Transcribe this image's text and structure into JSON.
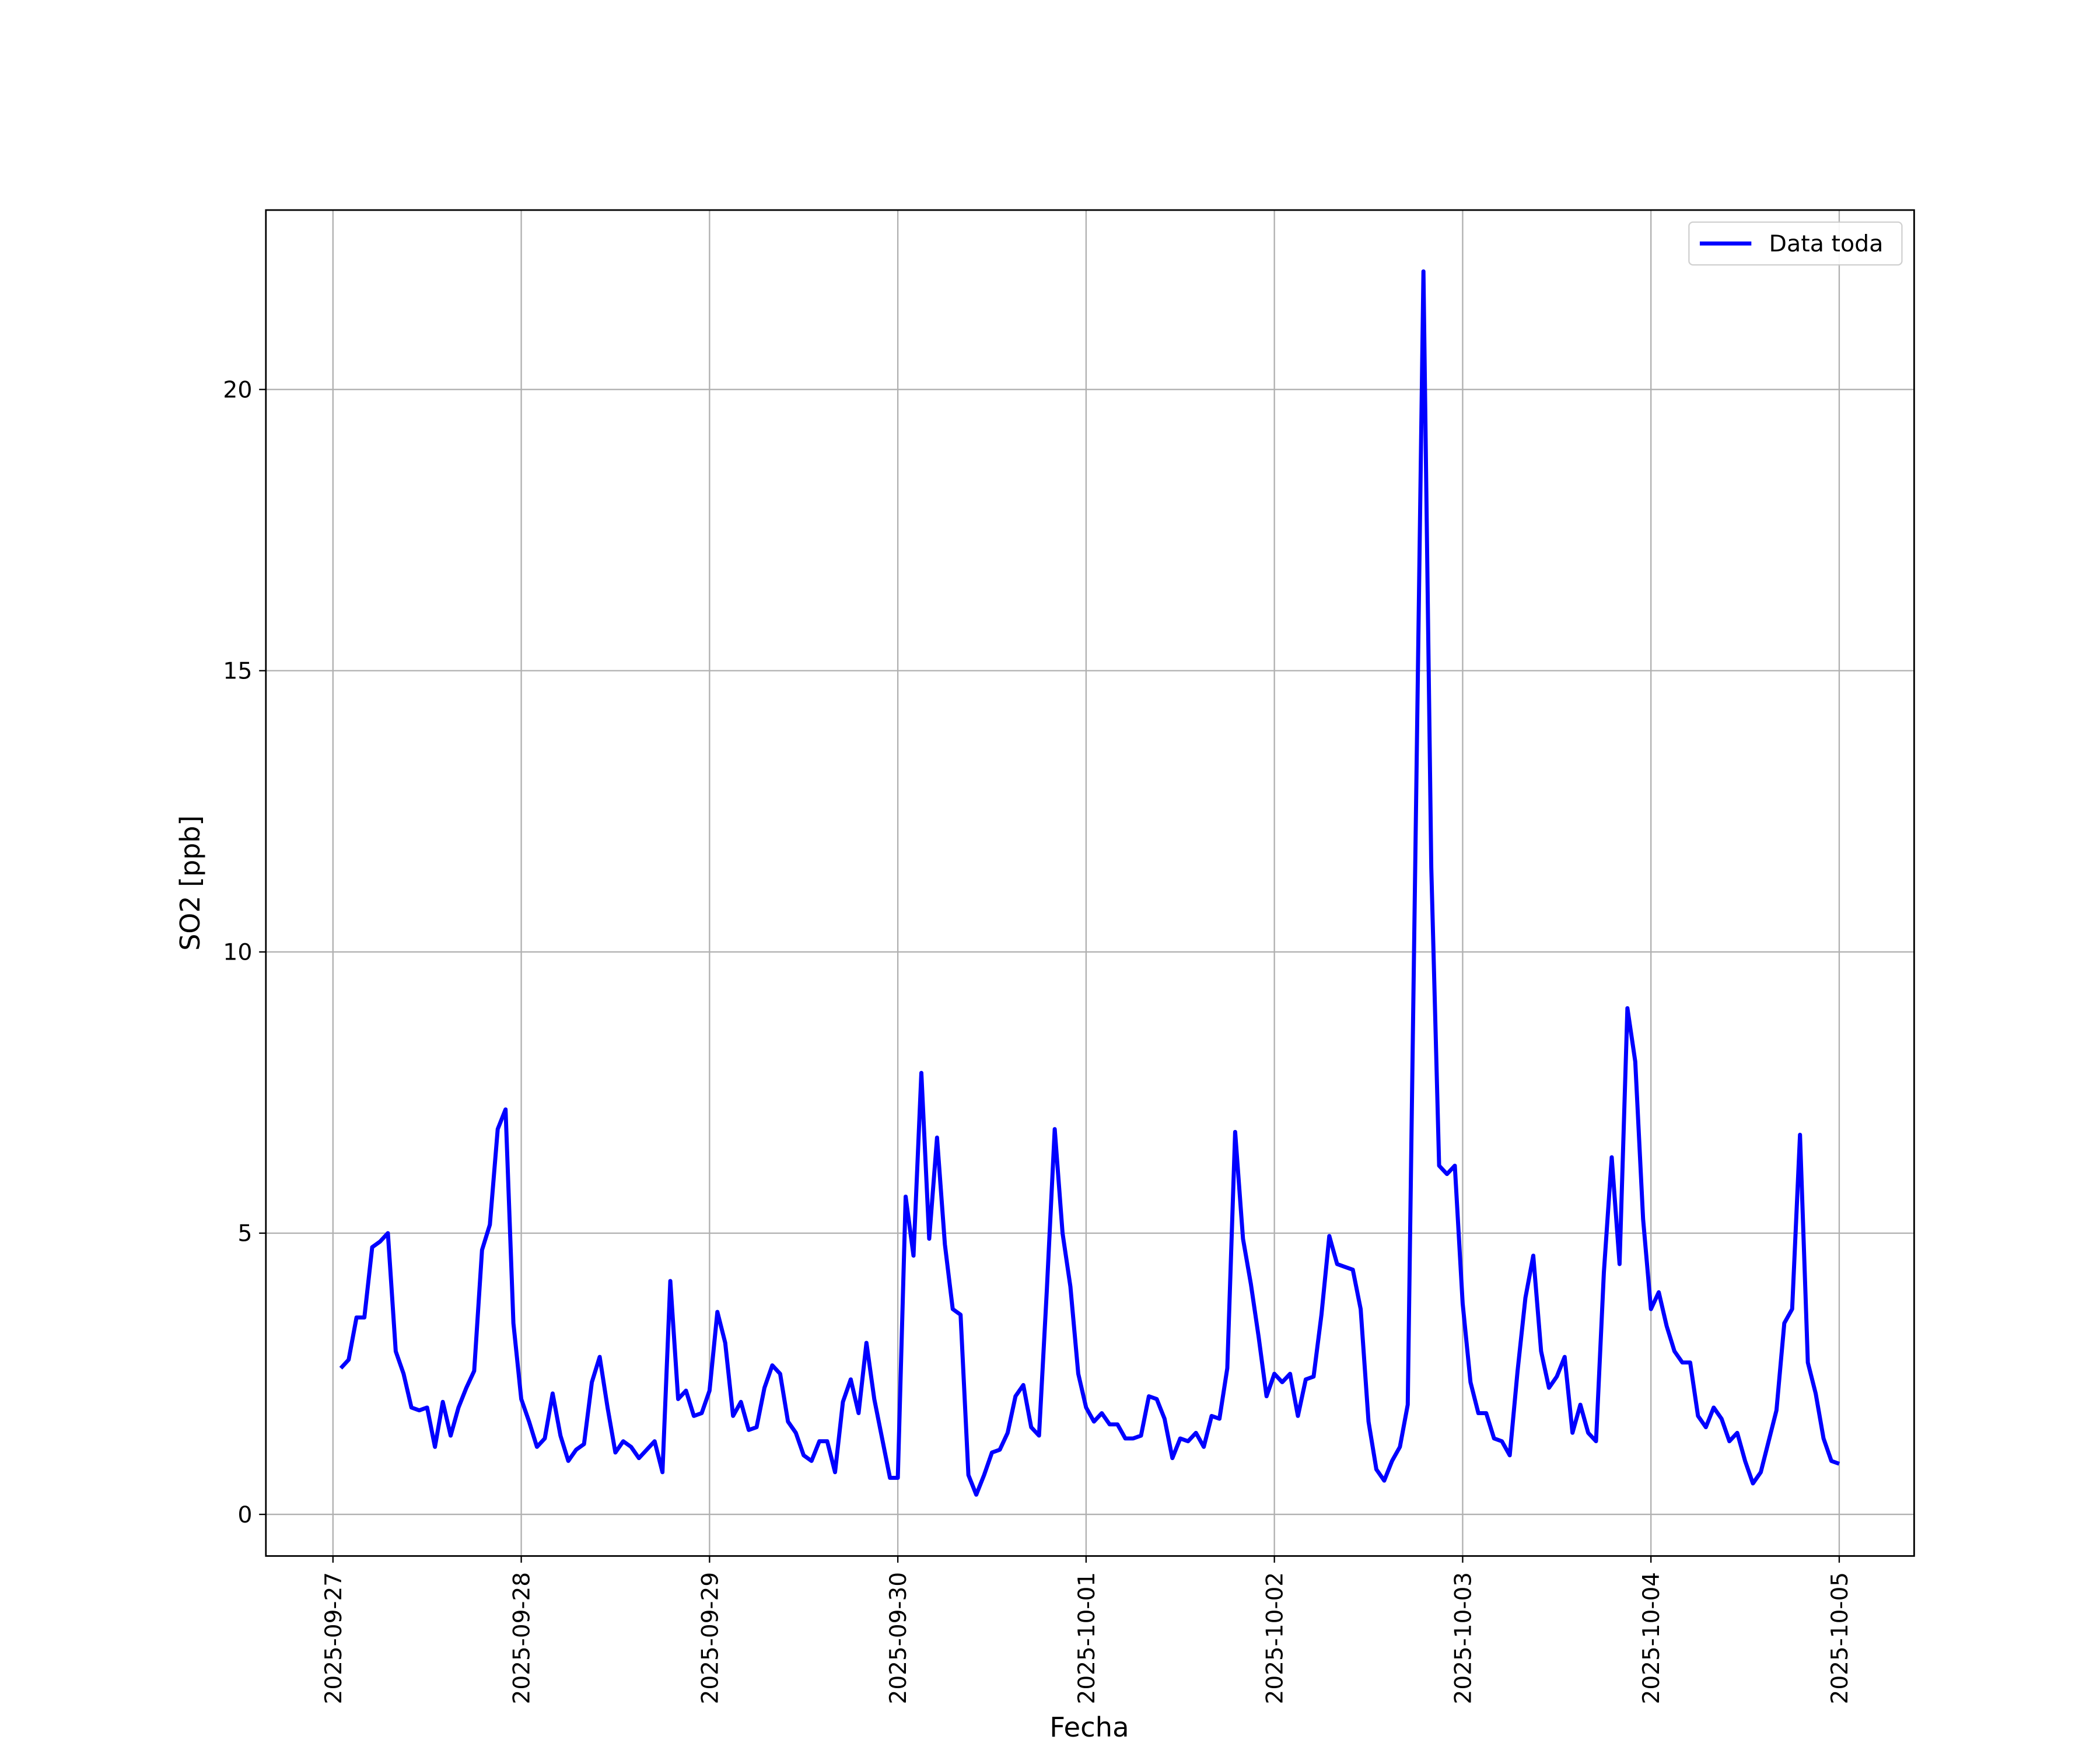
{
  "chart_data": {
    "type": "line",
    "xlabel": "Fecha",
    "ylabel": "SO2 [ppb]",
    "x": [
      "2025-09-27 01:00",
      "2025-09-27 02:00",
      "2025-09-27 03:00",
      "2025-09-27 04:00",
      "2025-09-27 05:00",
      "2025-09-27 06:00",
      "2025-09-27 07:00",
      "2025-09-27 08:00",
      "2025-09-27 09:00",
      "2025-09-27 10:00",
      "2025-09-27 11:00",
      "2025-09-27 12:00",
      "2025-09-27 13:00",
      "2025-09-27 14:00",
      "2025-09-27 15:00",
      "2025-09-27 16:00",
      "2025-09-27 17:00",
      "2025-09-27 18:00",
      "2025-09-27 19:00",
      "2025-09-27 20:00",
      "2025-09-27 21:00",
      "2025-09-27 22:00",
      "2025-09-27 23:00",
      "2025-09-28 00:00",
      "2025-09-28 01:00",
      "2025-09-28 02:00",
      "2025-09-28 03:00",
      "2025-09-28 04:00",
      "2025-09-28 05:00",
      "2025-09-28 06:00",
      "2025-09-28 07:00",
      "2025-09-28 08:00",
      "2025-09-28 09:00",
      "2025-09-28 10:00",
      "2025-09-28 11:00",
      "2025-09-28 12:00",
      "2025-09-28 13:00",
      "2025-09-28 14:00",
      "2025-09-28 15:00",
      "2025-09-28 16:00",
      "2025-09-28 17:00",
      "2025-09-28 18:00",
      "2025-09-28 19:00",
      "2025-09-28 20:00",
      "2025-09-28 21:00",
      "2025-09-28 22:00",
      "2025-09-28 23:00",
      "2025-09-29 00:00",
      "2025-09-29 01:00",
      "2025-09-29 02:00",
      "2025-09-29 03:00",
      "2025-09-29 04:00",
      "2025-09-29 05:00",
      "2025-09-29 06:00",
      "2025-09-29 07:00",
      "2025-09-29 08:00",
      "2025-09-29 09:00",
      "2025-09-29 10:00",
      "2025-09-29 11:00",
      "2025-09-29 12:00",
      "2025-09-29 13:00",
      "2025-09-29 14:00",
      "2025-09-29 15:00",
      "2025-09-29 16:00",
      "2025-09-29 17:00",
      "2025-09-29 18:00",
      "2025-09-29 19:00",
      "2025-09-29 20:00",
      "2025-09-29 21:00",
      "2025-09-29 22:00",
      "2025-09-29 23:00",
      "2025-09-30 00:00",
      "2025-09-30 01:00",
      "2025-09-30 02:00",
      "2025-09-30 03:00",
      "2025-09-30 04:00",
      "2025-09-30 05:00",
      "2025-09-30 06:00",
      "2025-09-30 07:00",
      "2025-09-30 08:00",
      "2025-09-30 09:00",
      "2025-09-30 10:00",
      "2025-09-30 11:00",
      "2025-09-30 12:00",
      "2025-09-30 13:00",
      "2025-09-30 14:00",
      "2025-09-30 15:00",
      "2025-09-30 16:00",
      "2025-09-30 17:00",
      "2025-09-30 18:00",
      "2025-09-30 19:00",
      "2025-09-30 20:00",
      "2025-09-30 21:00",
      "2025-09-30 22:00",
      "2025-09-30 23:00",
      "2025-10-01 00:00",
      "2025-10-01 01:00",
      "2025-10-01 02:00",
      "2025-10-01 03:00",
      "2025-10-01 04:00",
      "2025-10-01 05:00",
      "2025-10-01 06:00",
      "2025-10-01 07:00",
      "2025-10-01 08:00",
      "2025-10-01 09:00",
      "2025-10-01 10:00",
      "2025-10-01 11:00",
      "2025-10-01 12:00",
      "2025-10-01 13:00",
      "2025-10-01 14:00",
      "2025-10-01 15:00",
      "2025-10-01 16:00",
      "2025-10-01 17:00",
      "2025-10-01 18:00",
      "2025-10-01 19:00",
      "2025-10-01 20:00",
      "2025-10-01 21:00",
      "2025-10-01 22:00",
      "2025-10-01 23:00",
      "2025-10-02 00:00",
      "2025-10-02 01:00",
      "2025-10-02 02:00",
      "2025-10-02 03:00",
      "2025-10-02 04:00",
      "2025-10-02 05:00",
      "2025-10-02 06:00",
      "2025-10-02 07:00",
      "2025-10-02 08:00",
      "2025-10-02 09:00",
      "2025-10-02 10:00",
      "2025-10-02 11:00",
      "2025-10-02 12:00",
      "2025-10-02 13:00",
      "2025-10-02 14:00",
      "2025-10-02 15:00",
      "2025-10-02 16:00",
      "2025-10-02 17:00",
      "2025-10-02 18:00",
      "2025-10-02 19:00",
      "2025-10-02 20:00",
      "2025-10-02 21:00",
      "2025-10-02 22:00",
      "2025-10-02 23:00",
      "2025-10-03 00:00",
      "2025-10-03 01:00",
      "2025-10-03 02:00",
      "2025-10-03 03:00",
      "2025-10-03 04:00",
      "2025-10-03 05:00",
      "2025-10-03 06:00",
      "2025-10-03 07:00",
      "2025-10-03 08:00",
      "2025-10-03 09:00",
      "2025-10-03 10:00",
      "2025-10-03 11:00",
      "2025-10-03 12:00",
      "2025-10-03 13:00",
      "2025-10-03 14:00",
      "2025-10-03 15:00",
      "2025-10-03 16:00",
      "2025-10-03 17:00",
      "2025-10-03 18:00",
      "2025-10-03 19:00",
      "2025-10-03 20:00",
      "2025-10-03 21:00",
      "2025-10-03 22:00",
      "2025-10-03 23:00",
      "2025-10-04 00:00",
      "2025-10-04 01:00",
      "2025-10-04 02:00",
      "2025-10-04 03:00",
      "2025-10-04 04:00",
      "2025-10-04 05:00",
      "2025-10-04 06:00",
      "2025-10-04 07:00",
      "2025-10-04 08:00",
      "2025-10-04 09:00",
      "2025-10-04 10:00",
      "2025-10-04 11:00",
      "2025-10-04 12:00",
      "2025-10-04 13:00",
      "2025-10-04 14:00",
      "2025-10-04 15:00",
      "2025-10-04 16:00",
      "2025-10-04 17:00",
      "2025-10-04 18:00",
      "2025-10-04 19:00",
      "2025-10-04 20:00",
      "2025-10-04 21:00",
      "2025-10-04 22:00",
      "2025-10-04 23:00",
      "2025-10-05 00:00"
    ],
    "series": [
      {
        "name": "Data toda",
        "color": "#0000ff",
        "values": [
          2.6,
          2.75,
          3.5,
          3.5,
          4.75,
          4.85,
          5.0,
          2.9,
          2.5,
          1.9,
          1.85,
          1.9,
          1.2,
          2.0,
          1.4,
          1.9,
          2.25,
          2.55,
          4.7,
          5.15,
          6.85,
          7.2,
          3.4,
          2.05,
          1.65,
          1.2,
          1.35,
          2.15,
          1.4,
          0.95,
          1.15,
          1.25,
          2.35,
          2.8,
          1.9,
          1.1,
          1.3,
          1.2,
          1.0,
          1.15,
          1.3,
          0.75,
          4.15,
          2.05,
          2.2,
          1.75,
          1.8,
          2.2,
          3.6,
          3.05,
          1.75,
          2.0,
          1.5,
          1.55,
          2.25,
          2.65,
          2.5,
          1.65,
          1.45,
          1.05,
          0.95,
          1.3,
          1.3,
          0.75,
          2.0,
          2.4,
          1.8,
          3.05,
          2.05,
          1.35,
          0.65,
          0.65,
          5.65,
          4.6,
          7.85,
          4.9,
          6.7,
          4.8,
          3.65,
          3.55,
          0.7,
          0.35,
          0.7,
          1.1,
          1.15,
          1.45,
          2.1,
          2.3,
          1.55,
          1.4,
          4.0,
          6.85,
          5.0,
          4.05,
          2.5,
          1.9,
          1.65,
          1.8,
          1.6,
          1.6,
          1.35,
          1.35,
          1.4,
          2.1,
          2.05,
          1.7,
          1.0,
          1.35,
          1.3,
          1.45,
          1.2,
          1.75,
          1.7,
          2.6,
          6.8,
          4.9,
          4.1,
          3.15,
          2.1,
          2.5,
          2.35,
          2.5,
          1.75,
          2.4,
          2.45,
          3.55,
          4.95,
          4.45,
          4.4,
          4.35,
          3.65,
          1.65,
          0.8,
          0.6,
          0.95,
          1.2,
          1.95,
          12.0,
          22.1,
          11.5,
          6.2,
          6.05,
          6.2,
          3.75,
          2.35,
          1.8,
          1.8,
          1.35,
          1.3,
          1.05,
          2.55,
          3.85,
          4.6,
          2.9,
          2.25,
          2.45,
          2.8,
          1.45,
          1.95,
          1.45,
          1.3,
          4.3,
          6.35,
          4.45,
          9.0,
          8.05,
          5.25,
          3.65,
          3.95,
          3.35,
          2.9,
          2.7,
          2.7,
          1.75,
          1.55,
          1.9,
          1.7,
          1.3,
          1.45,
          0.95,
          0.55,
          0.75,
          1.3,
          1.85,
          3.4,
          3.65,
          6.75,
          2.7,
          2.15,
          1.35,
          0.95,
          0.9
        ]
      }
    ],
    "xlim": [
      "2025-09-26 15:27",
      "2025-10-05 09:33"
    ],
    "xticks": [
      "2025-09-27",
      "2025-09-28",
      "2025-09-29",
      "2025-09-30",
      "2025-10-01",
      "2025-10-02",
      "2025-10-03",
      "2025-10-04",
      "2025-10-05"
    ],
    "ylim": [
      -0.74,
      23.19
    ],
    "yticks": [
      0,
      5,
      10,
      15,
      20
    ],
    "grid": true,
    "legend": "upper right"
  }
}
